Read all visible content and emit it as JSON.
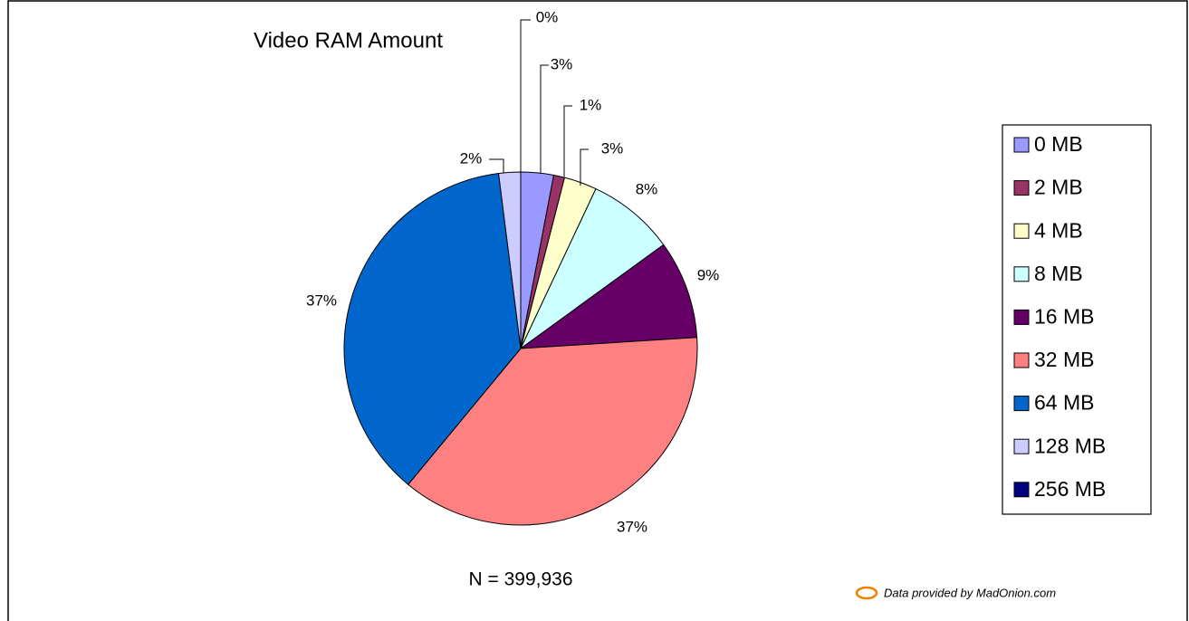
{
  "chart_data": {
    "type": "pie",
    "title": "Video RAM Amount",
    "categories": [
      "0 MB",
      "2 MB",
      "4 MB",
      "8 MB",
      "16 MB",
      "32 MB",
      "64 MB",
      "128 MB",
      "256 MB"
    ],
    "values": [
      3,
      1,
      3,
      8,
      9,
      37,
      37,
      2,
      0
    ],
    "value_labels": [
      "3%",
      "1%",
      "3%",
      "8%",
      "9%",
      "37%",
      "37%",
      "2%",
      "0%"
    ],
    "colors": [
      "#9999ff",
      "#993366",
      "#ffffcc",
      "#ccffff",
      "#660066",
      "#ff8080",
      "#0066cc",
      "#ccccff",
      "#000080"
    ],
    "legend": "right",
    "annotations": [
      "N = 399,936",
      "Data provided by MadOnion.com"
    ]
  }
}
